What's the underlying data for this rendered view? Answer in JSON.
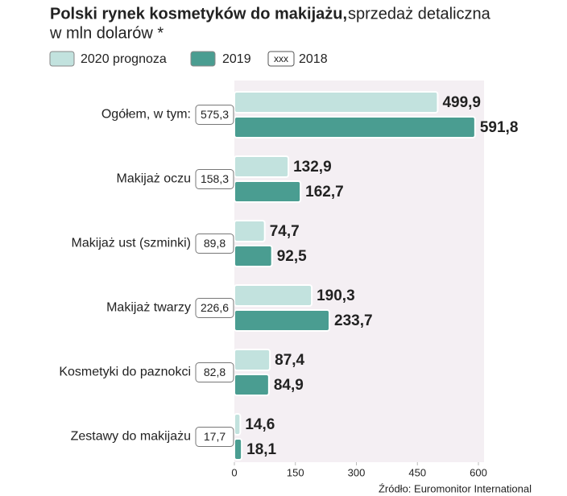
{
  "chart_data": {
    "type": "bar",
    "orientation": "horizontal",
    "title": "Polski rynek kosmetyków do makijażu,",
    "subtitle": [
      "sprzedaż detaliczna",
      "w mln dolarów *"
    ],
    "source": "Źródło: Euromonitor International",
    "categories": [
      "Ogółem, w tym:",
      "Makijaż oczu",
      "Makijaż ust (szminki)",
      "Makijaż twarzy",
      "Kosmetyki do paznokci",
      "Zestawy do makijażu"
    ],
    "series": [
      {
        "name": "2020 prognoza",
        "color": "#c2e2de",
        "values": [
          499.9,
          132.9,
          74.7,
          190.3,
          87.4,
          14.6
        ],
        "value_labels": [
          "499,9",
          "132,9",
          "74,7",
          "190,3",
          "87,4",
          "14,6"
        ]
      },
      {
        "name": "2019",
        "color": "#4a9d91",
        "values": [
          591.8,
          162.7,
          92.5,
          233.7,
          84.9,
          18.1
        ],
        "value_labels": [
          "591,8",
          "162,7",
          "92,5",
          "233,7",
          "84,9",
          "18,1"
        ]
      },
      {
        "name": "2018",
        "legend_sample": "xxx",
        "values": [
          575.3,
          158.3,
          89.8,
          226.6,
          82.8,
          17.7
        ],
        "value_labels": [
          "575,3",
          "158,3",
          "89,8",
          "226,6",
          "82,8",
          "17,7"
        ]
      }
    ],
    "xlim": [
      0,
      600
    ],
    "xticks": [
      0,
      150,
      300,
      450,
      600
    ]
  }
}
